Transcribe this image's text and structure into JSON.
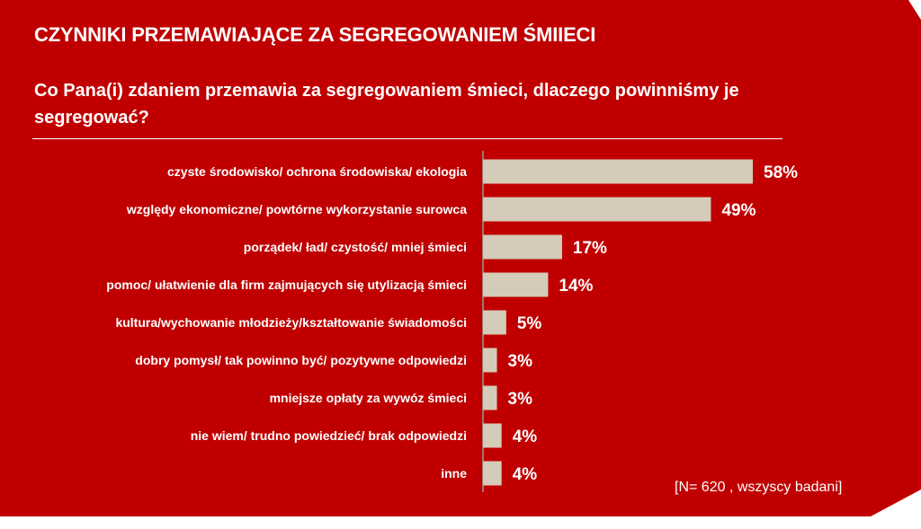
{
  "header": {
    "title": "CZYNNIKI PRZEMAWIAJĄCE ZA SEGREGOWANIEM ŚMIIECI",
    "subtitle": "Co Pana(i) zdaniem przemawia za segregowaniem śmieci, dlaczego powinniśmy je segregować?"
  },
  "footer": {
    "note": "[N= 620 , wszyscy badani]"
  },
  "colors": {
    "background": "#c00000",
    "bar": "#d4cbb8",
    "text": "#ffffff"
  },
  "chart_data": {
    "type": "bar",
    "orientation": "horizontal",
    "categories": [
      "czyste środowisko/ ochrona środowiska/ ekologia",
      "względy ekonomiczne/ powtórne wykorzystanie surowca",
      "porządek/ ład/ czystość/ mniej śmieci",
      "pomoc/ ułatwienie dla firm zajmujących się utylizacją śmieci",
      "kultura/wychowanie młodzieży/kształtowanie świadomości",
      "dobry pomysł/ tak powinno być/ pozytywne odpowiedzi",
      "mniejsze opłaty za wywóz śmieci",
      "nie wiem/ trudno powiedzieć/ brak odpowiedzi",
      "inne"
    ],
    "values": [
      58,
      49,
      17,
      14,
      5,
      3,
      3,
      4,
      4
    ],
    "value_labels": [
      "58%",
      "49%",
      "17%",
      "14%",
      "5%",
      "3%",
      "3%",
      "4%",
      "4%"
    ],
    "title": "",
    "xlabel": "",
    "ylabel": "",
    "xlim": [
      0,
      58
    ],
    "grid": false,
    "legend": "none"
  }
}
